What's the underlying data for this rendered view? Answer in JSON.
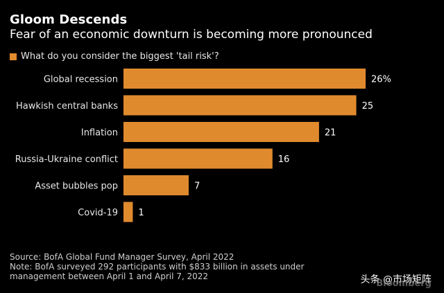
{
  "chart_data": {
    "type": "bar",
    "orientation": "horizontal",
    "title": "Gloom Descends",
    "subtitle": "Fear of an economic downturn is becoming more pronounced",
    "series": [
      {
        "name": "What do you consider the biggest 'tail risk'?",
        "color": "#e08a2e",
        "values": [
          26,
          25,
          21,
          16,
          7,
          1
        ]
      }
    ],
    "categories": [
      "Global recession",
      "Hawkish central banks",
      "Inflation",
      "Russia-Ukraine conflict",
      "Asset bubbles pop",
      "Covid-19"
    ],
    "value_labels": [
      "26%",
      "25",
      "21",
      "16",
      "7",
      "1"
    ],
    "xlim": [
      0,
      26
    ],
    "legend_position": "top-left",
    "grid": false
  },
  "footer": {
    "source": "Source: BofA Global Fund Manager Survey, April 2022",
    "note_line1": "Note: BofA surveyed 292 participants with $833 billion in assets under",
    "note_line2": "management between April 1 and April 7, 2022"
  },
  "watermark": {
    "text": "头条 @市场矩阵",
    "brand": "Bloomberg"
  }
}
